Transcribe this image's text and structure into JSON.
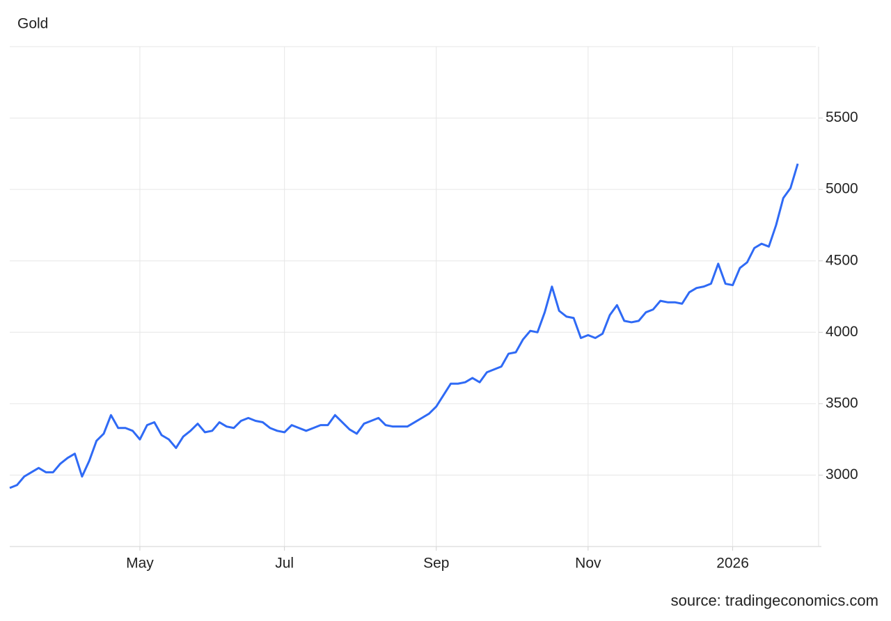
{
  "chart_data": {
    "type": "line",
    "title": "Gold",
    "source": "source: tradingeconomics.com",
    "categories": [
      null,
      null,
      null,
      null,
      null,
      null,
      null,
      null,
      null,
      null,
      null,
      null,
      null,
      null,
      null,
      null,
      null,
      null,
      "May",
      null,
      null,
      null,
      null,
      null,
      null,
      null,
      null,
      null,
      null,
      null,
      null,
      null,
      null,
      null,
      null,
      null,
      null,
      null,
      "Jul",
      null,
      null,
      null,
      null,
      null,
      null,
      null,
      null,
      null,
      null,
      null,
      null,
      null,
      null,
      null,
      null,
      null,
      null,
      null,
      null,
      "Sep",
      null,
      null,
      null,
      null,
      null,
      null,
      null,
      null,
      null,
      null,
      null,
      null,
      null,
      null,
      null,
      null,
      null,
      null,
      null,
      null,
      "Nov",
      null,
      null,
      null,
      null,
      null,
      null,
      null,
      null,
      null,
      null,
      null,
      null,
      null,
      null,
      null,
      null,
      null,
      null,
      null,
      "2026",
      null,
      null,
      null,
      null,
      null,
      null,
      null,
      null,
      null
    ],
    "series": [
      {
        "color": "#2f6af5",
        "values": [
          2910,
          2930,
          2990,
          3020,
          3050,
          3020,
          3020,
          3080,
          3120,
          3150,
          2990,
          3100,
          3240,
          3290,
          3420,
          3330,
          3330,
          3310,
          3250,
          3350,
          3370,
          3280,
          3250,
          3190,
          3270,
          3310,
          3360,
          3300,
          3310,
          3370,
          3340,
          3330,
          3380,
          3400,
          3380,
          3370,
          3330,
          3310,
          3300,
          3350,
          3330,
          3310,
          3330,
          3350,
          3350,
          3420,
          3370,
          3320,
          3290,
          3360,
          3380,
          3400,
          3350,
          3340,
          3340,
          3340,
          3370,
          3400,
          3430,
          3480,
          3560,
          3640,
          3640,
          3650,
          3680,
          3650,
          3720,
          3740,
          3760,
          3850,
          3860,
          3950,
          4010,
          4000,
          4140,
          4320,
          4150,
          4110,
          4100,
          3960,
          3980,
          3960,
          3990,
          4120,
          4190,
          4080,
          4070,
          4080,
          4140,
          4160,
          4220,
          4210,
          4210,
          4200,
          4280,
          4310,
          4320,
          4340,
          4480,
          4340,
          4330,
          4450,
          4490,
          4590,
          4620,
          4600,
          4750,
          4940,
          5010,
          5180
        ]
      }
    ],
    "ylim": [
      2500,
      6000
    ],
    "yticks": [
      3000,
      3500,
      4000,
      4500,
      5000,
      5500
    ],
    "grid": true
  }
}
